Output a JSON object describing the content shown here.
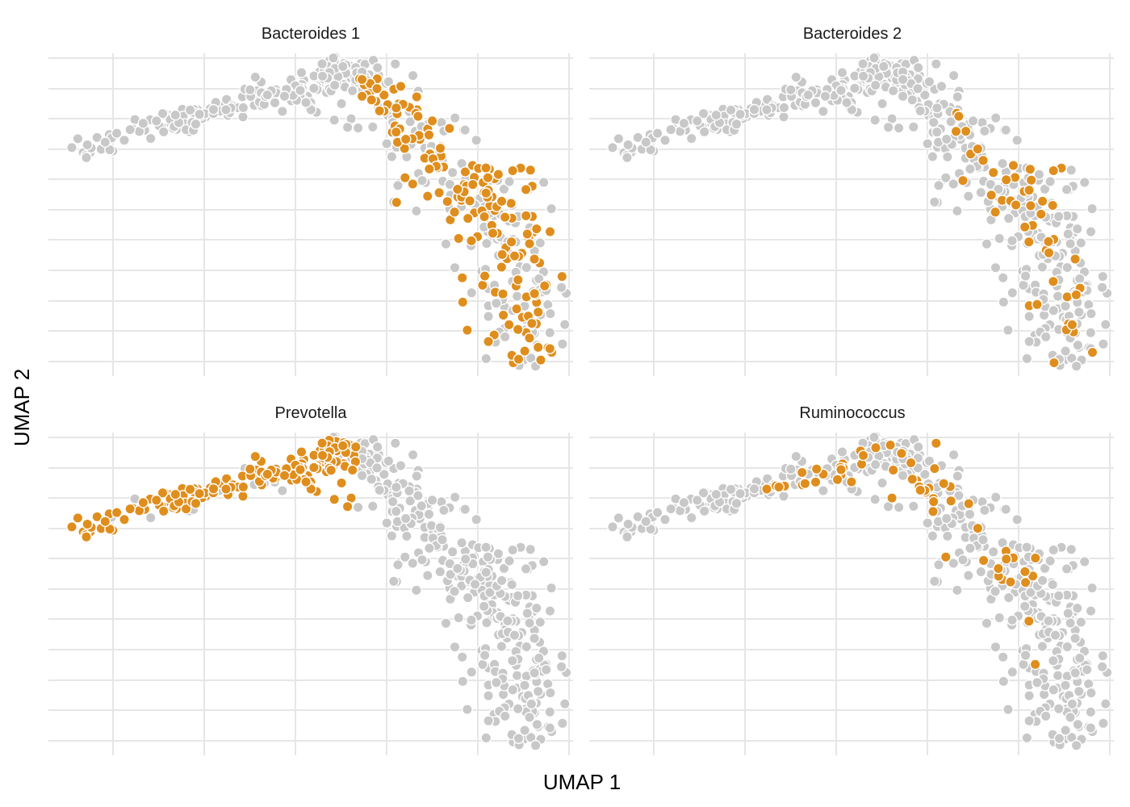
{
  "chart_data": {
    "type": "scatter",
    "xlabel": "UMAP 1",
    "ylabel": "UMAP 2",
    "x_ticks_labeled": false,
    "y_ticks_labeled": false,
    "grid": true,
    "legend": "none",
    "colors": {
      "highlight": "#DF8E1D",
      "background": "#C8C8C8",
      "point_outline": "#FFFFFF",
      "grid_major": "#E6E6E6"
    },
    "xlim": [
      -8.0,
      6.5
    ],
    "ylim": [
      -5.2,
      5.0
    ],
    "facets": [
      "Bacteroides 1",
      "Bacteroides 2",
      "Prevotella",
      "Ruminococcus"
    ],
    "highlight_regions": {
      "Bacteroides 1": {
        "x_range": [
          0.5,
          6.2
        ],
        "y_range": [
          -5.0,
          4.2
        ],
        "rate": 0.55
      },
      "Bacteroides 2": {
        "x_range": [
          2.0,
          6.3
        ],
        "y_range": [
          -5.0,
          4.5
        ],
        "rate": 0.22
      },
      "Prevotella": {
        "x_range": [
          -7.5,
          0.5
        ],
        "y_range": [
          1.5,
          4.8
        ],
        "rate": 0.85
      },
      "Ruminococcus": {
        "x_range": [
          -4.0,
          4.5
        ],
        "y_range": [
          -4.0,
          4.8
        ],
        "rate": 0.18
      }
    },
    "backbone": [
      [
        -7.3,
        1.5
      ],
      [
        -6.6,
        2.0
      ],
      [
        -5.2,
        2.6
      ],
      [
        -3.8,
        3.0
      ],
      [
        -2.5,
        3.5
      ],
      [
        -1.4,
        3.8
      ],
      [
        -0.6,
        3.6
      ],
      [
        0.0,
        4.6
      ],
      [
        0.8,
        4.2
      ],
      [
        1.6,
        3.0
      ],
      [
        2.6,
        1.8
      ],
      [
        3.6,
        0.8
      ],
      [
        4.6,
        -0.8
      ],
      [
        5.2,
        -2.4
      ],
      [
        5.6,
        -3.6
      ],
      [
        5.8,
        -4.7
      ]
    ]
  }
}
